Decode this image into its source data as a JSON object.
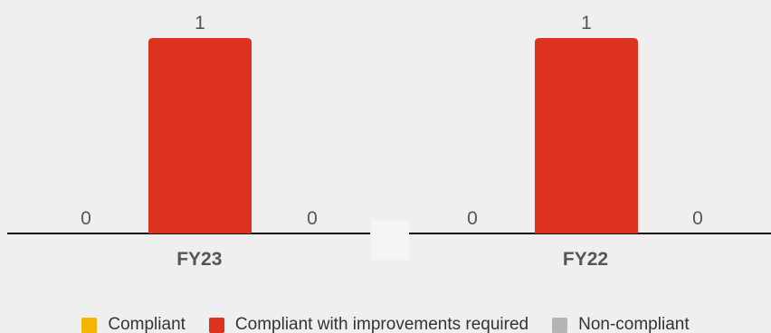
{
  "chart_data": {
    "type": "bar",
    "categories": [
      "FY23",
      "FY22"
    ],
    "series": [
      {
        "name": "Compliant",
        "color": "#f5b400",
        "values": [
          0,
          0
        ]
      },
      {
        "name": "Compliant with improvements required",
        "color": "#dc321e",
        "values": [
          1,
          1
        ]
      },
      {
        "name": "Non-compliant",
        "color": "#b4b4b4",
        "values": [
          0,
          0
        ]
      }
    ],
    "ylim": [
      0,
      1
    ],
    "grid": false,
    "legend_position": "bottom",
    "title": "",
    "xlabel": "",
    "ylabel": ""
  }
}
